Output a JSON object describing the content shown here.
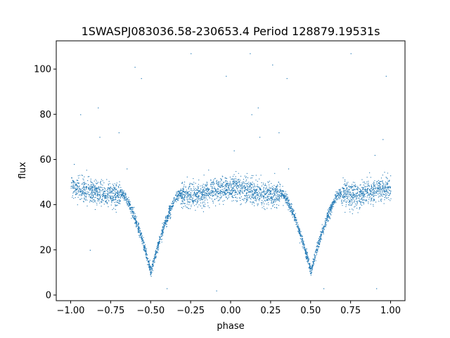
{
  "chart_data": {
    "type": "scatter",
    "title": "1SWASPJ083036.58-230653.4 Period 128879.19531s",
    "xlabel": "phase",
    "ylabel": "flux",
    "xlim": [
      -1.09,
      1.09
    ],
    "ylim": [
      -2.5,
      112.5
    ],
    "xticks": [
      -1.0,
      -0.75,
      -0.5,
      -0.25,
      0.0,
      0.25,
      0.5,
      0.75,
      1.0
    ],
    "xtick_labels": [
      "−1.00",
      "−0.75",
      "−0.50",
      "−0.25",
      "0.00",
      "0.25",
      "0.50",
      "0.75",
      "1.00"
    ],
    "yticks": [
      0,
      20,
      40,
      60,
      80,
      100
    ],
    "ytick_labels": [
      "0",
      "20",
      "40",
      "60",
      "80",
      "100"
    ],
    "grid": false,
    "marker_color": "#1f77b4",
    "light_curve": {
      "baseline_flux": 46,
      "eclipse_phases": [
        -0.5,
        0.5
      ],
      "eclipse_min_flux": 9,
      "eclipse_half_width": 0.18,
      "scatter": 2.6
    },
    "outliers": [
      {
        "x": -0.83,
        "y": 83
      },
      {
        "x": -0.94,
        "y": 80
      },
      {
        "x": -0.7,
        "y": 72
      },
      {
        "x": -0.82,
        "y": 70
      },
      {
        "x": -0.25,
        "y": 107
      },
      {
        "x": -0.6,
        "y": 101
      },
      {
        "x": -0.56,
        "y": 96
      },
      {
        "x": -0.03,
        "y": 97
      },
      {
        "x": 0.12,
        "y": 107
      },
      {
        "x": 0.26,
        "y": 102
      },
      {
        "x": 0.17,
        "y": 83
      },
      {
        "x": 0.13,
        "y": 80
      },
      {
        "x": 0.3,
        "y": 72
      },
      {
        "x": 0.18,
        "y": 70
      },
      {
        "x": 0.75,
        "y": 107
      },
      {
        "x": 0.97,
        "y": 97
      },
      {
        "x": 0.35,
        "y": 96
      },
      {
        "x": 0.02,
        "y": 64
      },
      {
        "x": -0.98,
        "y": 58
      },
      {
        "x": 0.9,
        "y": 62
      },
      {
        "x": 0.95,
        "y": 69
      },
      {
        "x": -0.88,
        "y": 20
      },
      {
        "x": -0.09,
        "y": 2
      },
      {
        "x": 0.91,
        "y": 3
      },
      {
        "x": 0.58,
        "y": 3
      },
      {
        "x": -0.4,
        "y": 3
      },
      {
        "x": 0.62,
        "y": 34
      },
      {
        "x": -0.38,
        "y": 34
      },
      {
        "x": -0.65,
        "y": 56
      },
      {
        "x": 0.36,
        "y": 56
      }
    ]
  }
}
